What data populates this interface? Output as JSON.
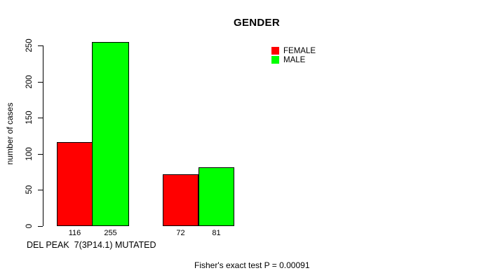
{
  "title": "GENDER",
  "legend": {
    "items": [
      {
        "label": "FEMALE",
        "color": "#FF0000"
      },
      {
        "label": "MALE",
        "color": "#00FF00"
      }
    ]
  },
  "footer": {
    "group_axis_label": "DEL PEAK  7(3P14.1) MUTATED",
    "stat_note": "Fisher's exact test P = 0.00091"
  },
  "chart_data": {
    "type": "bar",
    "title": "GENDER",
    "ylabel": "number of cases",
    "series": [
      {
        "name": "FEMALE",
        "color": "#FF0000",
        "values": [
          116,
          72
        ]
      },
      {
        "name": "MALE",
        "color": "#00FF00",
        "values": [
          255,
          81
        ]
      }
    ],
    "bar_value_labels": [
      [
        "116",
        "255"
      ],
      [
        "72",
        "81"
      ]
    ],
    "yticks": [
      0,
      50,
      100,
      150,
      200,
      250
    ],
    "ylim": [
      0,
      265
    ],
    "grid": false,
    "legend_position": "top-right",
    "axis_color": "#000000",
    "bar_border_color": "#000000",
    "annotations": [
      "DEL PEAK  7(3P14.1) MUTATED",
      "Fisher's exact test P = 0.00091"
    ]
  }
}
